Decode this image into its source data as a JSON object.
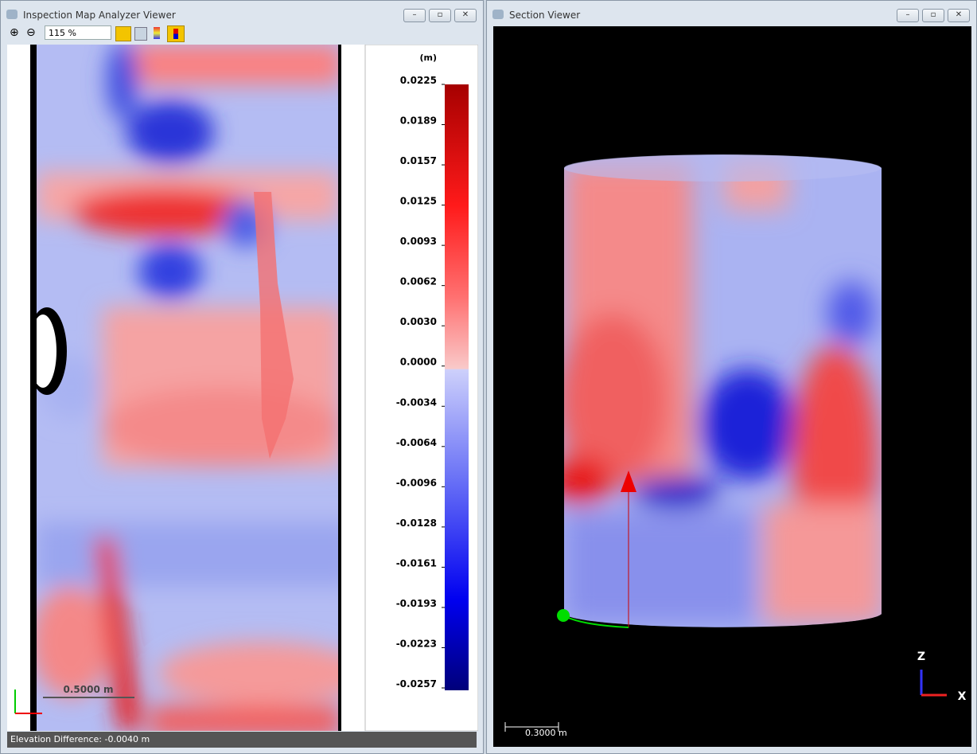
{
  "left_window": {
    "title": "Inspection Map Analyzer Viewer",
    "zoom": "115 %",
    "colorbar": {
      "unit": "(m)",
      "ticks": [
        "0.0225",
        "0.0189",
        "0.0157",
        "0.0125",
        "0.0093",
        "0.0062",
        "0.0030",
        "0.0000",
        "-0.0034",
        "-0.0064",
        "-0.0096",
        "-0.0128",
        "-0.0161",
        "-0.0193",
        "-0.0223",
        "-0.0257"
      ]
    },
    "scale_bar": "0.5000 m",
    "status": "Elevation Difference: -0.0040 m"
  },
  "right_window": {
    "title": "Section Viewer",
    "scale_bar": "0.3000 m",
    "axes": {
      "z": "Z",
      "x": "X"
    }
  }
}
